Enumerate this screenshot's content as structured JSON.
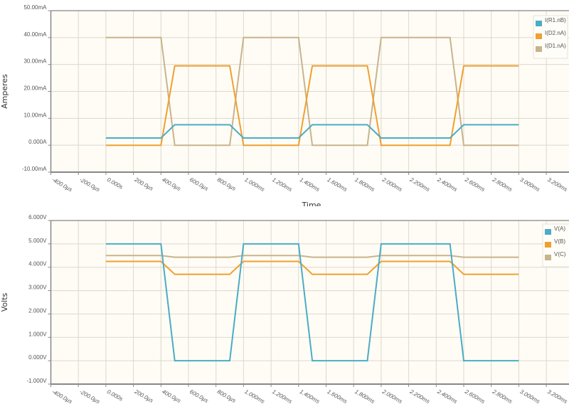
{
  "chart_data": [
    {
      "type": "line",
      "title": "",
      "xlabel": "Time",
      "ylabel": "Amperes",
      "ylim": [
        -0.01,
        0.05
      ],
      "xlim": [
        -0.0004,
        0.00325
      ],
      "grid": true,
      "legend_position": "top-right",
      "y_ticks": [
        "50.00mA",
        "40.00mA",
        "30.00mA",
        "20.00mA",
        "10.00mA",
        "0.000A",
        "-10.00mA"
      ],
      "y_tick_values": [
        0.05,
        0.04,
        0.03,
        0.02,
        0.01,
        0.0,
        -0.01
      ],
      "x_ticks": [
        "-400.0µs",
        "-200.0µs",
        "0.000s",
        "200.0µs",
        "400.0µs",
        "600.0µs",
        "800.0µs",
        "1.000ms",
        "1.200ms",
        "1.400ms",
        "1.600ms",
        "1.800ms",
        "2.000ms",
        "2.200ms",
        "2.400ms",
        "2.600ms",
        "2.800ms",
        "3.000ms",
        "3.200ms"
      ],
      "x_tick_values": [
        -0.0004,
        -0.0002,
        0,
        0.0002,
        0.0004,
        0.0006,
        0.0008,
        0.001,
        0.0012,
        0.0014,
        0.0016,
        0.0018,
        0.002,
        0.0022,
        0.0024,
        0.0026,
        0.0028,
        0.003,
        0.0032
      ],
      "x": [
        0,
        0.0004,
        0.0005,
        0.0009,
        0.001,
        0.0014,
        0.0015,
        0.0019,
        0.002,
        0.0025,
        0.0026,
        0.003
      ],
      "series": [
        {
          "name": "I(R1.nB)",
          "color": "#4bacc6",
          "values": [
            0.0027,
            0.0027,
            0.0076,
            0.0076,
            0.0027,
            0.0027,
            0.0076,
            0.0076,
            0.0027,
            0.0027,
            0.0076,
            0.0076
          ]
        },
        {
          "name": "I(D2.nA)",
          "color": "#f0a030",
          "values": [
            0.0,
            0.0,
            0.0295,
            0.0295,
            0.0,
            0.0,
            0.0295,
            0.0295,
            0.0,
            0.0,
            0.0295,
            0.0295
          ]
        },
        {
          "name": "I(D1.nA)",
          "color": "#c8b48c",
          "values": [
            0.04,
            0.04,
            0.0,
            0.0,
            0.04,
            0.04,
            0.0,
            0.0,
            0.04,
            0.04,
            0.0,
            0.0
          ]
        }
      ]
    },
    {
      "type": "line",
      "title": "",
      "xlabel": "",
      "ylabel": "Volts",
      "ylim": [
        -1.0,
        6.0
      ],
      "xlim": [
        -0.0004,
        0.00325
      ],
      "grid": true,
      "legend_position": "top-right",
      "y_ticks": [
        "6.000V",
        "5.000V",
        "4.000V",
        "3.000V",
        "2.000V",
        "1.000V",
        "0.000V",
        "-1.000V"
      ],
      "y_tick_values": [
        6,
        5,
        4,
        3,
        2,
        1,
        0,
        -1
      ],
      "x_ticks": [
        "-400.0µs",
        "-200.0µs",
        "0.000s",
        "200.0µs",
        "400.0µs",
        "600.0µs",
        "800.0µs",
        "1.000ms",
        "1.200ms",
        "1.400ms",
        "1.600ms",
        "1.800ms",
        "2.000ms",
        "2.200ms",
        "2.400ms",
        "2.600ms",
        "2.800ms",
        "3.000ms",
        "3.200ms"
      ],
      "x_tick_values": [
        -0.0004,
        -0.0002,
        0,
        0.0002,
        0.0004,
        0.0006,
        0.0008,
        0.001,
        0.0012,
        0.0014,
        0.0016,
        0.0018,
        0.002,
        0.0022,
        0.0024,
        0.0026,
        0.0028,
        0.003,
        0.0032
      ],
      "x": [
        0,
        0.0004,
        0.0005,
        0.0009,
        0.001,
        0.0014,
        0.0015,
        0.0019,
        0.002,
        0.0025,
        0.0026,
        0.003
      ],
      "series": [
        {
          "name": "V(A)",
          "color": "#4bacc6",
          "values": [
            5.0,
            5.0,
            0.0,
            0.0,
            5.0,
            5.0,
            0.0,
            0.0,
            5.0,
            5.0,
            0.0,
            0.0
          ]
        },
        {
          "name": "V(B)",
          "color": "#f0a030",
          "values": [
            4.25,
            4.25,
            3.7,
            3.7,
            4.25,
            4.25,
            3.7,
            3.7,
            4.25,
            4.25,
            3.7,
            3.7
          ]
        },
        {
          "name": "V(C)",
          "color": "#c8b48c",
          "values": [
            4.5,
            4.5,
            4.43,
            4.43,
            4.5,
            4.5,
            4.43,
            4.43,
            4.5,
            4.5,
            4.43,
            4.43
          ]
        }
      ]
    }
  ],
  "style": {
    "plot_background": "#fffcf5",
    "grid_color": "#dcd8cf",
    "axis_color": "#888888"
  }
}
